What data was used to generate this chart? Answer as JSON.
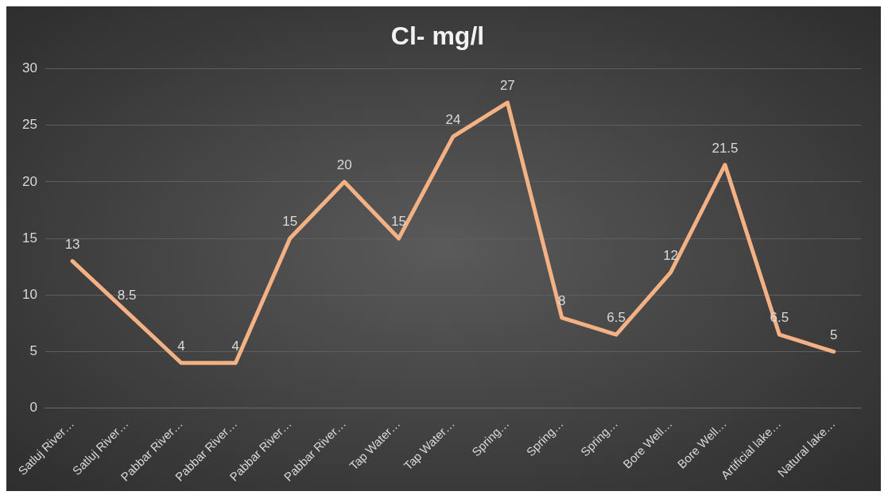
{
  "chart_data": {
    "type": "line",
    "title": "Cl- mg/l",
    "categories": [
      "Satluj River…",
      "Satluj River…",
      "Pabbar River…",
      "Pabbar River…",
      "Pabbar River…",
      "Pabbar River…",
      "Tap Water…",
      "Tap Water…",
      "Spring…",
      "Spring…",
      "Spring…",
      "Bore Well…",
      "Bore Well…",
      "Artificial lake…",
      "Natural lake…"
    ],
    "series": [
      {
        "color": "#f4b183",
        "values": [
          13,
          8.5,
          4,
          4,
          15,
          20,
          15,
          24,
          27,
          8,
          6.5,
          12,
          21.5,
          6.5,
          5
        ]
      }
    ],
    "ylim": [
      0,
      30
    ],
    "yticks": [
      0,
      5,
      10,
      15,
      20,
      25,
      30
    ],
    "grid": "y",
    "legend": false,
    "marker": "none",
    "line_style": "solid",
    "data_labels": true
  }
}
